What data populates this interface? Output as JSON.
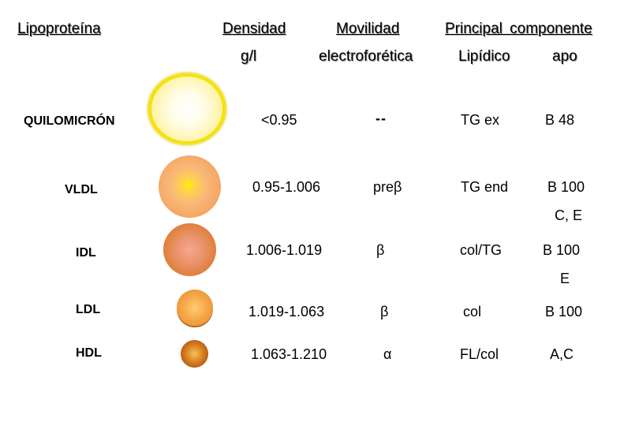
{
  "headers": {
    "lipoprotein": "Lipoproteína",
    "density": "Densidad",
    "density_unit": "g/l",
    "mobility": "Movilidad",
    "mobility_sub": "electroforética",
    "main_component": "Principal componente",
    "lipid": "Lipídico",
    "apo": "apo"
  },
  "rows": [
    {
      "name": "QUILOMICRÓN",
      "density": "<0.95",
      "mobility": "--",
      "lipid": "TG ex",
      "apo": "B 48",
      "apo2": ""
    },
    {
      "name": "VLDL",
      "density": "0.95-1.006",
      "mobility": "preβ",
      "lipid": "TG end",
      "apo": "B 100",
      "apo2": "C, E"
    },
    {
      "name": "IDL",
      "density": "1.006-1.019",
      "mobility": "β",
      "lipid": "col/TG",
      "apo": "B 100",
      "apo2": "E"
    },
    {
      "name": "LDL",
      "density": "1.019-1.063",
      "mobility": "β",
      "lipid": "col",
      "apo": "B 100",
      "apo2": ""
    },
    {
      "name": "HDL",
      "density": "1.063-1.210",
      "mobility": "α",
      "lipid": "FL/col",
      "apo": "A,C",
      "apo2": ""
    }
  ],
  "colors": {
    "quilomicron_fill": "#fff3a8",
    "quilomicron_ring": "#f5e20a",
    "vldl": "#f6a05a",
    "idl": "#d9782b",
    "ldl": "#e8892a",
    "hdl": "#9c4708"
  }
}
